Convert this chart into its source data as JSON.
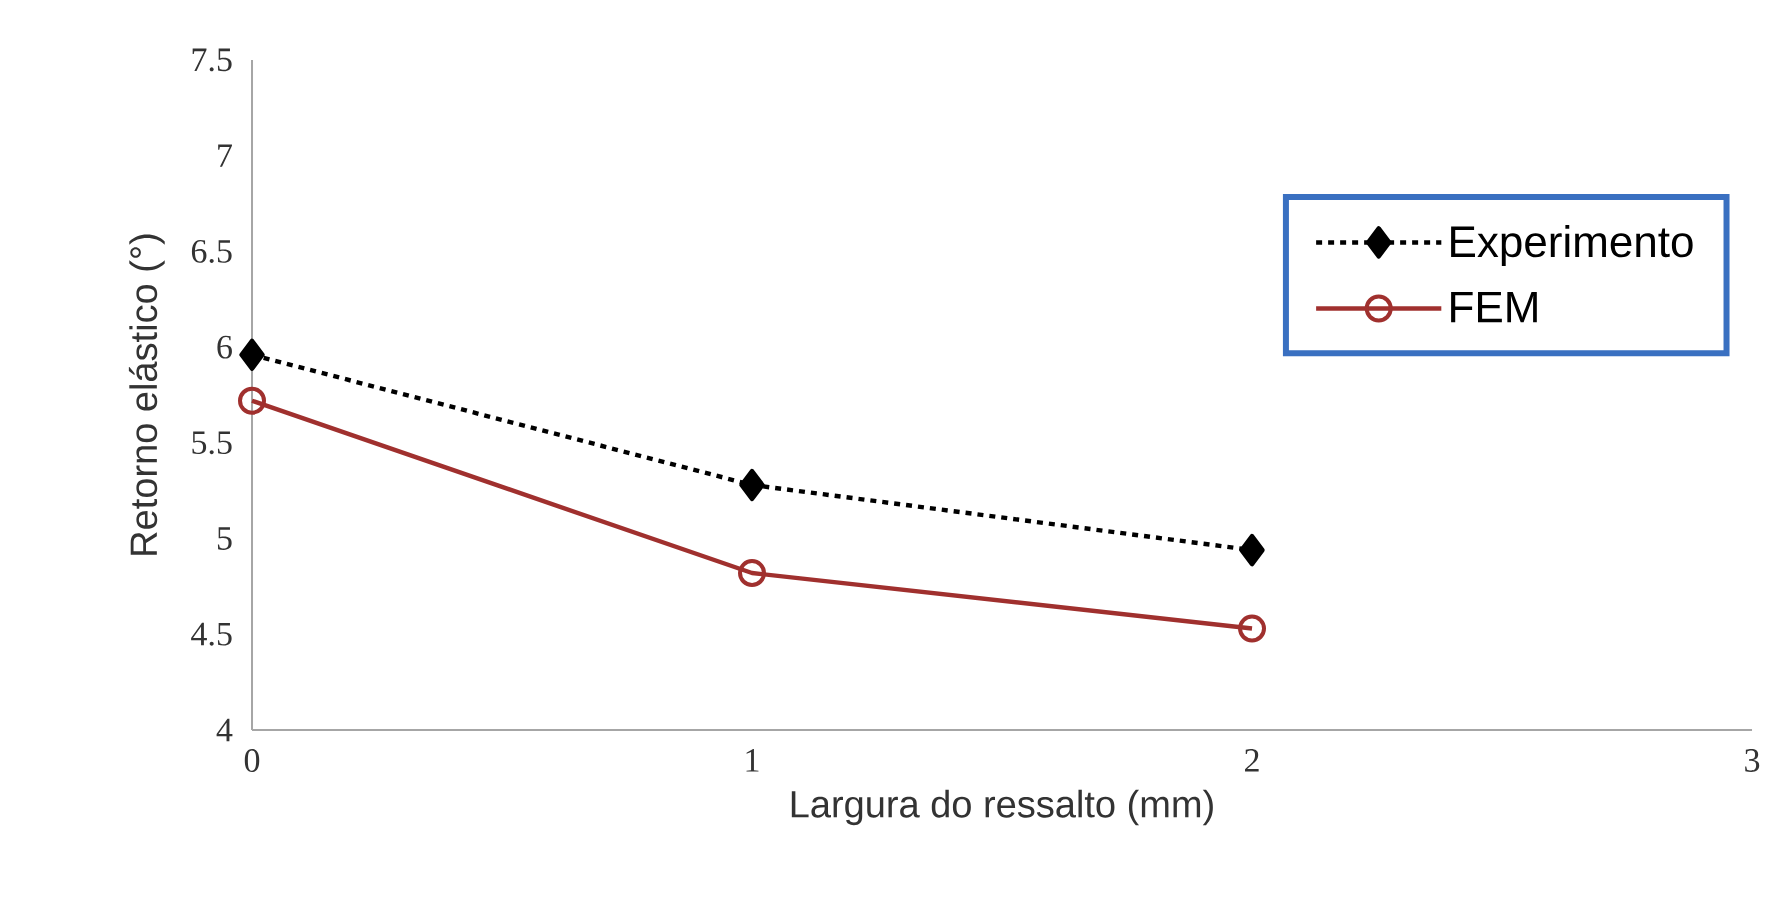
{
  "chart_data": {
    "type": "line",
    "xlabel": "Largura do ressalto (mm)",
    "ylabel": "Retorno elástico (°)",
    "x": [
      0,
      1,
      2
    ],
    "series": [
      {
        "name": "Experimento",
        "color": "#000000",
        "values": [
          5.96,
          5.28,
          4.94
        ],
        "marker": "diamond",
        "line_style": "dotted"
      },
      {
        "name": "FEM",
        "color": "#a0302e",
        "values": [
          5.72,
          4.82,
          4.53
        ],
        "marker": "circle",
        "line_style": "solid"
      }
    ],
    "xlim": [
      0,
      3
    ],
    "xticks": [
      0,
      1,
      2,
      3
    ],
    "ylim": [
      4,
      7.5
    ],
    "yticks": [
      4,
      4.5,
      5,
      5.5,
      6,
      6.5,
      7,
      7.5
    ],
    "grid": false,
    "legend": "top right"
  }
}
